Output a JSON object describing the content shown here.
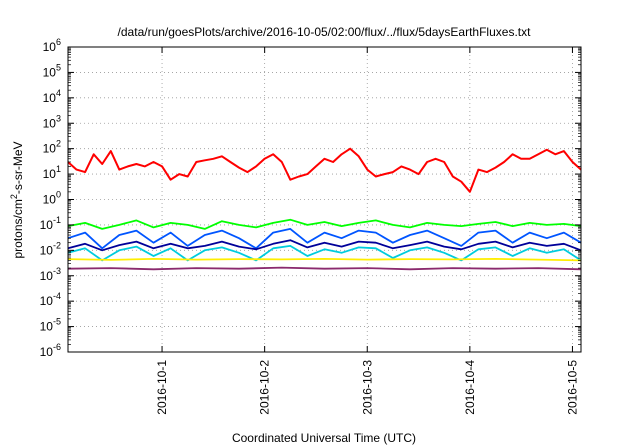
{
  "chart_data": {
    "type": "line",
    "title": "/data/run/goesPlots/archive/2016-10-05/02:00/flux/../flux/5daysEarthFluxes.txt",
    "xlabel": "Coordinated Universal Time (UTC)",
    "ylabel": {
      "prefix": "protons/cm",
      "superscript": "2",
      "suffix": "-s-sr-MeV"
    },
    "yscale": "log",
    "ylim": [
      1e-06,
      1000000.0
    ],
    "y_ticks": [
      {
        "base": "10",
        "exp": "-6",
        "value": 1e-06
      },
      {
        "base": "10",
        "exp": "-5",
        "value": 1e-05
      },
      {
        "base": "10",
        "exp": "-4",
        "value": 0.0001
      },
      {
        "base": "10",
        "exp": "-3",
        "value": 0.001
      },
      {
        "base": "10",
        "exp": "-2",
        "value": 0.01
      },
      {
        "base": "10",
        "exp": "-1",
        "value": 0.1
      },
      {
        "base": "10",
        "exp": "0",
        "value": 1
      },
      {
        "base": "10",
        "exp": "1",
        "value": 10
      },
      {
        "base": "10",
        "exp": "2",
        "value": 100
      },
      {
        "base": "10",
        "exp": "3",
        "value": 1000
      },
      {
        "base": "10",
        "exp": "4",
        "value": 10000
      },
      {
        "base": "10",
        "exp": "5",
        "value": 100000
      },
      {
        "base": "10",
        "exp": "6",
        "value": 1000000
      }
    ],
    "xlim": [
      "2016-09-30 02:00",
      "2016-10-05 02:00"
    ],
    "x_ticks": [
      "2016-10-1",
      "2016-10-2",
      "2016-10-3",
      "2016-10-4",
      "2016-10-5"
    ],
    "x_tick_values": [
      "2016-10-01",
      "2016-10-02",
      "2016-10-03",
      "2016-10-04",
      "2016-10-05"
    ],
    "grid": true,
    "series": [
      {
        "color": "#ff0000",
        "x": [
          "2016-09-30 02:00",
          "2016-09-30 04:00",
          "2016-09-30 06:00",
          "2016-09-30 08:00",
          "2016-09-30 10:00",
          "2016-09-30 12:00",
          "2016-09-30 14:00",
          "2016-09-30 16:00",
          "2016-09-30 18:00",
          "2016-09-30 20:00",
          "2016-09-30 22:00",
          "2016-10-01 00:00",
          "2016-10-01 02:00",
          "2016-10-01 04:00",
          "2016-10-01 06:00",
          "2016-10-01 08:00",
          "2016-10-01 10:00",
          "2016-10-01 12:00",
          "2016-10-01 14:00",
          "2016-10-01 16:00",
          "2016-10-01 18:00",
          "2016-10-01 20:00",
          "2016-10-01 22:00",
          "2016-10-02 00:00",
          "2016-10-02 02:00",
          "2016-10-02 04:00",
          "2016-10-02 06:00",
          "2016-10-02 08:00",
          "2016-10-02 10:00",
          "2016-10-02 12:00",
          "2016-10-02 14:00",
          "2016-10-02 16:00",
          "2016-10-02 18:00",
          "2016-10-02 20:00",
          "2016-10-02 22:00",
          "2016-10-03 00:00",
          "2016-10-03 02:00",
          "2016-10-03 04:00",
          "2016-10-03 06:00",
          "2016-10-03 08:00",
          "2016-10-03 10:00",
          "2016-10-03 12:00",
          "2016-10-03 14:00",
          "2016-10-03 16:00",
          "2016-10-03 18:00",
          "2016-10-03 20:00",
          "2016-10-03 22:00",
          "2016-10-04 00:00",
          "2016-10-04 02:00",
          "2016-10-04 04:00",
          "2016-10-04 06:00",
          "2016-10-04 08:00",
          "2016-10-04 10:00",
          "2016-10-04 12:00",
          "2016-10-04 14:00",
          "2016-10-04 16:00",
          "2016-10-04 18:00",
          "2016-10-04 20:00",
          "2016-10-04 22:00",
          "2016-10-05 00:00",
          "2016-10-05 02:00"
        ],
        "values": [
          30,
          15,
          12,
          60,
          25,
          80,
          15,
          20,
          25,
          20,
          30,
          20,
          6,
          10,
          8,
          30,
          35,
          40,
          50,
          30,
          18,
          12,
          20,
          40,
          60,
          30,
          6,
          8,
          10,
          20,
          40,
          30,
          60,
          100,
          50,
          15,
          8,
          10,
          12,
          20,
          15,
          10,
          30,
          40,
          30,
          8,
          5,
          2,
          15,
          12,
          18,
          30,
          60,
          40,
          40,
          60,
          90,
          60,
          80,
          30,
          15
        ]
      },
      {
        "color": "#00ff00",
        "x": [
          "2016-09-30 02:00",
          "2016-09-30 06:00",
          "2016-09-30 10:00",
          "2016-09-30 14:00",
          "2016-09-30 18:00",
          "2016-09-30 22:00",
          "2016-10-01 02:00",
          "2016-10-01 06:00",
          "2016-10-01 10:00",
          "2016-10-01 14:00",
          "2016-10-01 18:00",
          "2016-10-01 22:00",
          "2016-10-02 02:00",
          "2016-10-02 06:00",
          "2016-10-02 10:00",
          "2016-10-02 14:00",
          "2016-10-02 18:00",
          "2016-10-02 22:00",
          "2016-10-03 02:00",
          "2016-10-03 06:00",
          "2016-10-03 10:00",
          "2016-10-03 14:00",
          "2016-10-03 18:00",
          "2016-10-03 22:00",
          "2016-10-04 02:00",
          "2016-10-04 06:00",
          "2016-10-04 10:00",
          "2016-10-04 14:00",
          "2016-10-04 18:00",
          "2016-10-04 22:00",
          "2016-10-05 02:00"
        ],
        "values": [
          0.09,
          0.12,
          0.07,
          0.1,
          0.15,
          0.08,
          0.12,
          0.1,
          0.07,
          0.14,
          0.1,
          0.08,
          0.12,
          0.16,
          0.1,
          0.13,
          0.09,
          0.12,
          0.15,
          0.1,
          0.08,
          0.12,
          0.1,
          0.09,
          0.11,
          0.13,
          0.09,
          0.12,
          0.1,
          0.11,
          0.09
        ]
      },
      {
        "color": "#0055ff",
        "x": [
          "2016-09-30 02:00",
          "2016-09-30 06:00",
          "2016-09-30 10:00",
          "2016-09-30 14:00",
          "2016-09-30 18:00",
          "2016-09-30 22:00",
          "2016-10-01 02:00",
          "2016-10-01 06:00",
          "2016-10-01 10:00",
          "2016-10-01 14:00",
          "2016-10-01 18:00",
          "2016-10-01 22:00",
          "2016-10-02 02:00",
          "2016-10-02 06:00",
          "2016-10-02 10:00",
          "2016-10-02 14:00",
          "2016-10-02 18:00",
          "2016-10-02 22:00",
          "2016-10-03 02:00",
          "2016-10-03 06:00",
          "2016-10-03 10:00",
          "2016-10-03 14:00",
          "2016-10-03 18:00",
          "2016-10-03 22:00",
          "2016-10-04 02:00",
          "2016-10-04 06:00",
          "2016-10-04 10:00",
          "2016-10-04 14:00",
          "2016-10-04 18:00",
          "2016-10-04 22:00",
          "2016-10-05 02:00"
        ],
        "values": [
          0.03,
          0.05,
          0.012,
          0.04,
          0.06,
          0.02,
          0.05,
          0.015,
          0.04,
          0.06,
          0.03,
          0.012,
          0.05,
          0.07,
          0.02,
          0.05,
          0.03,
          0.06,
          0.05,
          0.02,
          0.04,
          0.06,
          0.03,
          0.015,
          0.05,
          0.06,
          0.02,
          0.05,
          0.03,
          0.05,
          0.02
        ]
      },
      {
        "color": "#00ccdd",
        "x": [
          "2016-09-30 02:00",
          "2016-09-30 06:00",
          "2016-09-30 10:00",
          "2016-09-30 14:00",
          "2016-09-30 18:00",
          "2016-09-30 22:00",
          "2016-10-01 02:00",
          "2016-10-01 06:00",
          "2016-10-01 10:00",
          "2016-10-01 14:00",
          "2016-10-01 18:00",
          "2016-10-01 22:00",
          "2016-10-02 02:00",
          "2016-10-02 06:00",
          "2016-10-02 10:00",
          "2016-10-02 14:00",
          "2016-10-02 18:00",
          "2016-10-02 22:00",
          "2016-10-03 02:00",
          "2016-10-03 06:00",
          "2016-10-03 10:00",
          "2016-10-03 14:00",
          "2016-10-03 18:00",
          "2016-10-03 22:00",
          "2016-10-04 02:00",
          "2016-10-04 06:00",
          "2016-10-04 10:00",
          "2016-10-04 14:00",
          "2016-10-04 18:00",
          "2016-10-04 22:00",
          "2016-10-05 02:00"
        ],
        "values": [
          0.008,
          0.012,
          0.004,
          0.01,
          0.014,
          0.006,
          0.012,
          0.004,
          0.01,
          0.013,
          0.008,
          0.004,
          0.012,
          0.015,
          0.006,
          0.011,
          0.008,
          0.013,
          0.012,
          0.005,
          0.01,
          0.013,
          0.008,
          0.004,
          0.011,
          0.013,
          0.006,
          0.012,
          0.008,
          0.011,
          0.004
        ]
      },
      {
        "color": "#000099",
        "x": [
          "2016-09-30 02:00",
          "2016-09-30 06:00",
          "2016-09-30 10:00",
          "2016-09-30 14:00",
          "2016-09-30 18:00",
          "2016-09-30 22:00",
          "2016-10-01 02:00",
          "2016-10-01 06:00",
          "2016-10-01 10:00",
          "2016-10-01 14:00",
          "2016-10-01 18:00",
          "2016-10-01 22:00",
          "2016-10-02 02:00",
          "2016-10-02 06:00",
          "2016-10-02 10:00",
          "2016-10-02 14:00",
          "2016-10-02 18:00",
          "2016-10-02 22:00",
          "2016-10-03 02:00",
          "2016-10-03 06:00",
          "2016-10-03 10:00",
          "2016-10-03 14:00",
          "2016-10-03 18:00",
          "2016-10-03 22:00",
          "2016-10-04 02:00",
          "2016-10-04 06:00",
          "2016-10-04 10:00",
          "2016-10-04 14:00",
          "2016-10-04 18:00",
          "2016-10-04 22:00",
          "2016-10-05 02:00"
        ],
        "values": [
          0.012,
          0.018,
          0.01,
          0.016,
          0.022,
          0.012,
          0.018,
          0.012,
          0.015,
          0.022,
          0.014,
          0.011,
          0.018,
          0.025,
          0.013,
          0.02,
          0.014,
          0.022,
          0.02,
          0.012,
          0.016,
          0.022,
          0.014,
          0.011,
          0.018,
          0.022,
          0.013,
          0.02,
          0.015,
          0.018,
          0.01
        ]
      },
      {
        "color": "#ffee00",
        "x": [
          "2016-09-30 02:00",
          "2016-09-30 12:00",
          "2016-09-30 22:00",
          "2016-10-01 08:00",
          "2016-10-01 18:00",
          "2016-10-02 04:00",
          "2016-10-02 14:00",
          "2016-10-03 00:00",
          "2016-10-03 10:00",
          "2016-10-03 20:00",
          "2016-10-04 06:00",
          "2016-10-04 16:00",
          "2016-10-05 02:00"
        ],
        "values": [
          0.0045,
          0.0042,
          0.0046,
          0.0043,
          0.0045,
          0.0044,
          0.0046,
          0.0043,
          0.0045,
          0.0044,
          0.0046,
          0.0043,
          0.004
        ]
      },
      {
        "color": "#8a2a6e",
        "x": [
          "2016-09-30 02:00",
          "2016-09-30 12:00",
          "2016-09-30 22:00",
          "2016-10-01 08:00",
          "2016-10-01 18:00",
          "2016-10-02 04:00",
          "2016-10-02 14:00",
          "2016-10-03 00:00",
          "2016-10-03 10:00",
          "2016-10-03 20:00",
          "2016-10-04 06:00",
          "2016-10-04 16:00",
          "2016-10-05 02:00"
        ],
        "values": [
          0.0019,
          0.002,
          0.0018,
          0.002,
          0.0019,
          0.0021,
          0.0019,
          0.002,
          0.0018,
          0.002,
          0.0019,
          0.002,
          0.0018
        ]
      }
    ]
  }
}
